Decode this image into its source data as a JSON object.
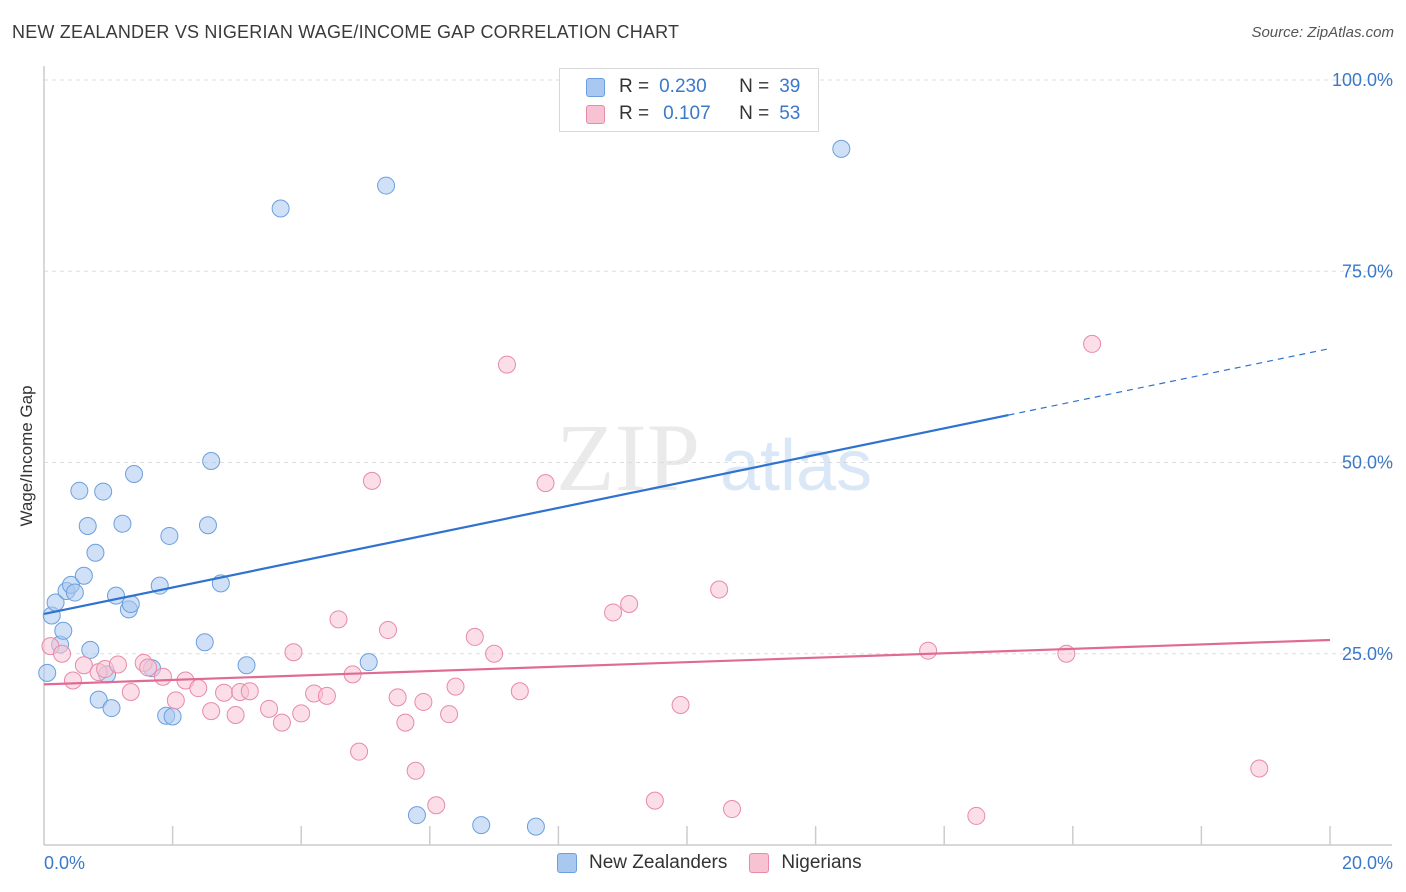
{
  "title": "NEW ZEALANDER VS NIGERIAN WAGE/INCOME GAP CORRELATION CHART",
  "source": "Source: ZipAtlas.com",
  "legend": {
    "rows": [
      {
        "r_label": "R =",
        "r_value": "0.230",
        "n_label": "N =",
        "n_value": "39",
        "color": "#a9c8f0",
        "border": "#6b9fde"
      },
      {
        "r_label": "R =",
        "r_value": "0.107",
        "n_label": "N =",
        "n_value": "53",
        "color": "#f7c3d3",
        "border": "#e88aa8"
      }
    ]
  },
  "bottom_legend": [
    "New Zealanders",
    "Nigerians"
  ],
  "watermark": {
    "zip": "ZIP",
    "atlas": "atlas"
  },
  "chart_data": {
    "type": "scatter",
    "ylabel": "Wage/Income Gap",
    "xlim": [
      0,
      20
    ],
    "ylim": [
      0,
      100
    ],
    "x_tick_labels": [
      "0.0%",
      "20.0%"
    ],
    "y_tick_labels": [
      "25.0%",
      "50.0%",
      "75.0%",
      "100.0%"
    ],
    "y_ticks": [
      25,
      50,
      75,
      100
    ],
    "series": [
      {
        "name": "New Zealanders",
        "color": "#a9c8f0",
        "stroke": "#6b9fde",
        "line_color": "#2f72d0",
        "trend": {
          "x0": 0,
          "y0": 30.2,
          "x1": 15.0,
          "y1": 56.2,
          "x_dash_end": 20.0,
          "y_dash_end": 64.9
        },
        "points": [
          [
            0.05,
            22.5
          ],
          [
            0.12,
            30.0
          ],
          [
            0.18,
            31.7
          ],
          [
            0.25,
            26.2
          ],
          [
            0.3,
            28.0
          ],
          [
            0.35,
            33.2
          ],
          [
            0.42,
            34.0
          ],
          [
            0.48,
            33.0
          ],
          [
            0.55,
            46.3
          ],
          [
            0.62,
            35.2
          ],
          [
            0.68,
            41.7
          ],
          [
            0.72,
            25.5
          ],
          [
            0.8,
            38.2
          ],
          [
            0.85,
            19.0
          ],
          [
            0.92,
            46.2
          ],
          [
            0.98,
            22.3
          ],
          [
            1.05,
            17.9
          ],
          [
            1.12,
            32.6
          ],
          [
            1.22,
            42.0
          ],
          [
            1.32,
            30.8
          ],
          [
            1.35,
            31.5
          ],
          [
            1.4,
            48.5
          ],
          [
            1.68,
            23.1
          ],
          [
            1.8,
            33.9
          ],
          [
            1.9,
            16.9
          ],
          [
            1.95,
            40.4
          ],
          [
            2.0,
            16.8
          ],
          [
            2.5,
            26.5
          ],
          [
            2.55,
            41.8
          ],
          [
            2.6,
            50.2
          ],
          [
            2.75,
            34.2
          ],
          [
            3.15,
            23.5
          ],
          [
            3.68,
            83.2
          ],
          [
            5.05,
            23.9
          ],
          [
            5.32,
            86.2
          ],
          [
            5.8,
            3.9
          ],
          [
            6.8,
            2.6
          ],
          [
            7.65,
            2.4
          ],
          [
            12.4,
            91.0
          ]
        ]
      },
      {
        "name": "Nigerians",
        "color": "#f7c3d3",
        "stroke": "#e88aa8",
        "line_color": "#e06a96",
        "trend": {
          "x0": 0,
          "y0": 21.0,
          "x1": 20.0,
          "y1": 26.8
        },
        "points": [
          [
            0.1,
            26.0
          ],
          [
            0.28,
            25.0
          ],
          [
            0.45,
            21.5
          ],
          [
            0.62,
            23.5
          ],
          [
            0.85,
            22.6
          ],
          [
            0.95,
            23.0
          ],
          [
            1.15,
            23.6
          ],
          [
            1.35,
            20.0
          ],
          [
            1.55,
            23.8
          ],
          [
            1.62,
            23.2
          ],
          [
            1.85,
            22.0
          ],
          [
            2.05,
            18.9
          ],
          [
            2.2,
            21.5
          ],
          [
            2.4,
            20.5
          ],
          [
            2.6,
            17.5
          ],
          [
            2.8,
            19.9
          ],
          [
            2.98,
            17.0
          ],
          [
            3.05,
            20.0
          ],
          [
            3.2,
            20.1
          ],
          [
            3.5,
            17.8
          ],
          [
            3.7,
            16.0
          ],
          [
            3.88,
            25.2
          ],
          [
            4.0,
            17.2
          ],
          [
            4.2,
            19.8
          ],
          [
            4.4,
            19.5
          ],
          [
            4.58,
            29.5
          ],
          [
            4.8,
            22.3
          ],
          [
            4.9,
            12.2
          ],
          [
            5.1,
            47.6
          ],
          [
            5.35,
            28.1
          ],
          [
            5.5,
            19.3
          ],
          [
            5.62,
            16.0
          ],
          [
            5.78,
            9.7
          ],
          [
            5.9,
            18.7
          ],
          [
            6.1,
            5.2
          ],
          [
            6.3,
            17.1
          ],
          [
            6.4,
            20.7
          ],
          [
            6.7,
            27.2
          ],
          [
            7.0,
            25.0
          ],
          [
            7.2,
            62.8
          ],
          [
            7.4,
            20.1
          ],
          [
            7.8,
            47.3
          ],
          [
            8.85,
            30.4
          ],
          [
            9.1,
            31.5
          ],
          [
            9.5,
            5.8
          ],
          [
            9.9,
            18.3
          ],
          [
            10.5,
            33.4
          ],
          [
            10.7,
            4.7
          ],
          [
            13.75,
            25.4
          ],
          [
            14.5,
            3.8
          ],
          [
            15.9,
            25.0
          ],
          [
            16.3,
            65.5
          ],
          [
            18.9,
            10.0
          ]
        ]
      }
    ]
  }
}
